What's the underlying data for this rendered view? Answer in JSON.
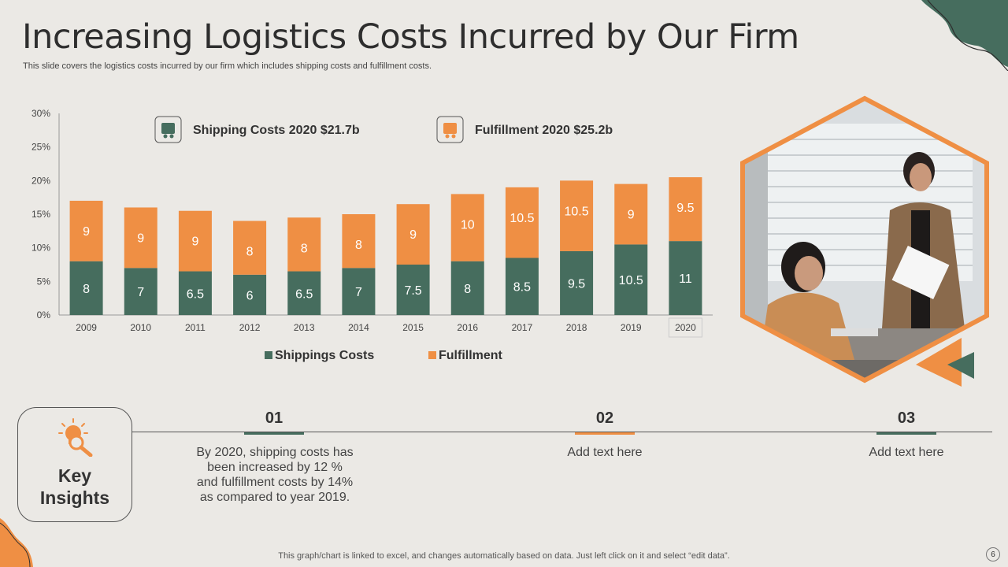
{
  "header": {
    "title": "Increasing Logistics Costs Incurred by Our Firm",
    "subtitle": "This slide covers the logistics costs incurred by our firm which includes shipping costs and fulfillment costs."
  },
  "colors": {
    "green": "#466d5e",
    "orange": "#ef8f44",
    "background": "#ebe9e5"
  },
  "chart_data": {
    "type": "bar",
    "stacked": true,
    "categories": [
      "2009",
      "2010",
      "2011",
      "2012",
      "2013",
      "2014",
      "2015",
      "2016",
      "2017",
      "2018",
      "2019",
      "2020"
    ],
    "series": [
      {
        "name": "Shippings Costs",
        "color": "#466d5e",
        "values": [
          8,
          7,
          6.5,
          6,
          6.5,
          7,
          7.5,
          8,
          8.5,
          9.5,
          10.5,
          11
        ]
      },
      {
        "name": "Fulfillment",
        "color": "#ef8f44",
        "values": [
          9,
          9,
          9,
          8,
          8,
          8,
          9,
          10,
          10.5,
          10.5,
          9,
          9.5
        ]
      }
    ],
    "ylim": [
      0,
      30
    ],
    "yticks": [
      "0%",
      "5%",
      "10%",
      "15%",
      "20%",
      "25%",
      "30%"
    ],
    "legend_position": "bottom",
    "annotations": [
      {
        "icon": "truck-icon",
        "text": "Shipping Costs  2020 $21.7b",
        "color": "#466d5e"
      },
      {
        "icon": "box-icon",
        "text": "Fulfillment 2020 $25.2b",
        "color": "#ef8f44"
      }
    ]
  },
  "insights": {
    "label": "Key\nInsights",
    "icon": "lightbulb-search-icon",
    "steps": [
      {
        "number": "01",
        "color": "#466d5e",
        "text": "By 2020, shipping costs has been increased by 12 % and fulfillment costs by 14% as compared to year 2019."
      },
      {
        "number": "02",
        "color": "#ef8f44",
        "text": "Add text here"
      },
      {
        "number": "03",
        "color": "#466d5e",
        "text": "Add text here"
      }
    ]
  },
  "photo": {
    "icon": "meeting-photo"
  },
  "footer": {
    "note": "This graph/chart is linked to excel,  and changes automatically based on data. Just left click on it and select “edit data”.",
    "page_number": "6"
  }
}
